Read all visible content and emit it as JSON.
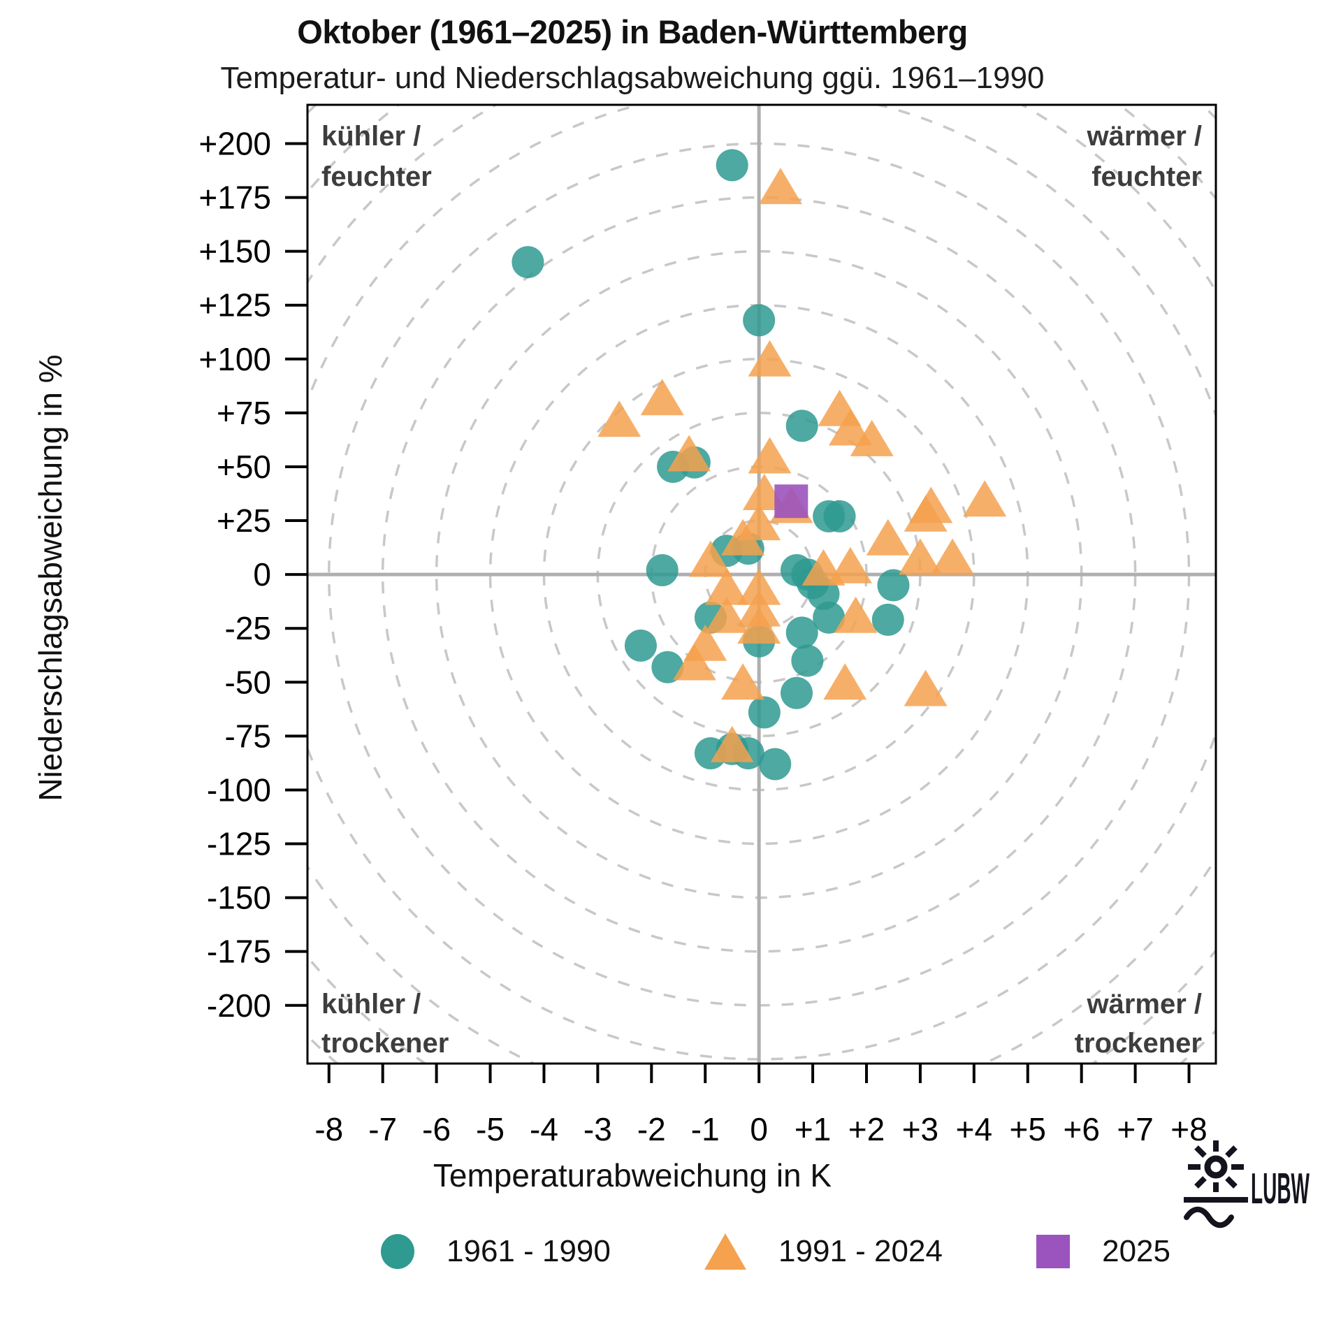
{
  "title": "Oktober (1961–2025) in Baden-Württemberg",
  "subtitle": "Temperatur- und Niederschlagsabweichung ggü. 1961–1990",
  "x_axis": {
    "label": "Temperaturabweichung in K",
    "tick_min": -8,
    "tick_max": 8,
    "tick_step": 1
  },
  "y_axis": {
    "label": "Niederschlagsabweichung in %",
    "tick_min": -200,
    "tick_max": 200,
    "tick_step": 25
  },
  "quadrants": {
    "top_left": [
      "kühler /",
      "feuchter"
    ],
    "top_right": [
      "wärmer /",
      "feuchter"
    ],
    "bottom_left": [
      "kühler /",
      "trockener"
    ],
    "bottom_right": [
      "wärmer /",
      "trockener"
    ]
  },
  "legend": [
    {
      "label": "1961 - 1990",
      "marker": "circle",
      "color": "#2E9A90"
    },
    {
      "label": "1991 - 2024",
      "marker": "triangle",
      "color": "#F5A14E"
    },
    {
      "label": "2025",
      "marker": "square",
      "color": "#9B53BD"
    }
  ],
  "logo": {
    "text": "LUBW"
  },
  "colors": {
    "teal": "#2E9A90",
    "orange": "#F5A14E",
    "purple": "#9B53BD",
    "ring": "#C8C8C8",
    "cross": "#AFAFAF",
    "border": "#000000",
    "quadrant_text": "#3D3D3D"
  },
  "chart_data": {
    "type": "scatter",
    "title": "Oktober (1961–2025) in Baden-Württemberg",
    "xlabel": "Temperaturabweichung in K",
    "ylabel": "Niederschlagsabweichung in %",
    "x_range": [
      -8.4,
      8.5
    ],
    "y_range": [
      -227,
      218
    ],
    "grid": "dashed concentric rings every 25 % (= 1 K), centered on origin; solid gray cross at 0/0",
    "ring_step_pct": 25,
    "ring_max_pct": 325,
    "legend_position": "bottom",
    "series": [
      {
        "name": "1961 - 1990",
        "marker": "circle",
        "color": "#2E9A90",
        "points": [
          [
            -0.5,
            190
          ],
          [
            -4.3,
            145
          ],
          [
            0.0,
            118
          ],
          [
            0.8,
            69
          ],
          [
            -1.6,
            50
          ],
          [
            -1.2,
            52
          ],
          [
            1.3,
            27
          ],
          [
            1.5,
            27
          ],
          [
            -0.6,
            11
          ],
          [
            -0.2,
            12
          ],
          [
            -1.8,
            2
          ],
          [
            0.7,
            2
          ],
          [
            0.9,
            0
          ],
          [
            1.0,
            -4
          ],
          [
            1.2,
            -9
          ],
          [
            1.3,
            -20
          ],
          [
            0.8,
            -27
          ],
          [
            2.5,
            -5
          ],
          [
            2.4,
            -21
          ],
          [
            0.0,
            -31
          ],
          [
            -0.9,
            -20
          ],
          [
            -2.2,
            -33
          ],
          [
            -1.7,
            -43
          ],
          [
            0.9,
            -40
          ],
          [
            0.7,
            -55
          ],
          [
            0.1,
            -64
          ],
          [
            -0.9,
            -83
          ],
          [
            -0.5,
            -81
          ],
          [
            -0.2,
            -83
          ],
          [
            0.3,
            -88
          ]
        ]
      },
      {
        "name": "1991 - 2024",
        "marker": "triangle",
        "color": "#F5A14E",
        "points": [
          [
            0.4,
            180
          ],
          [
            0.2,
            100
          ],
          [
            -1.8,
            82
          ],
          [
            -2.6,
            72
          ],
          [
            1.5,
            77
          ],
          [
            1.7,
            68
          ],
          [
            2.1,
            63
          ],
          [
            -1.3,
            56
          ],
          [
            0.2,
            55
          ],
          [
            0.1,
            38
          ],
          [
            0.6,
            32
          ],
          [
            0.0,
            24
          ],
          [
            -0.3,
            17
          ],
          [
            -0.9,
            7
          ],
          [
            1.2,
            3
          ],
          [
            1.7,
            4
          ],
          [
            2.4,
            17
          ],
          [
            3.2,
            32
          ],
          [
            3.1,
            28
          ],
          [
            4.2,
            35
          ],
          [
            3.0,
            8
          ],
          [
            3.6,
            8
          ],
          [
            -0.6,
            -6
          ],
          [
            0.0,
            -6
          ],
          [
            0.0,
            -16
          ],
          [
            -0.6,
            -19
          ],
          [
            0.0,
            -24
          ],
          [
            -1.0,
            -32
          ],
          [
            -1.2,
            -41
          ],
          [
            -0.3,
            -50
          ],
          [
            1.6,
            -50
          ],
          [
            1.8,
            -19
          ],
          [
            3.1,
            -53
          ],
          [
            -0.5,
            -79
          ]
        ]
      },
      {
        "name": "2025",
        "marker": "square",
        "color": "#9B53BD",
        "points": [
          [
            0.6,
            34
          ]
        ]
      }
    ]
  }
}
